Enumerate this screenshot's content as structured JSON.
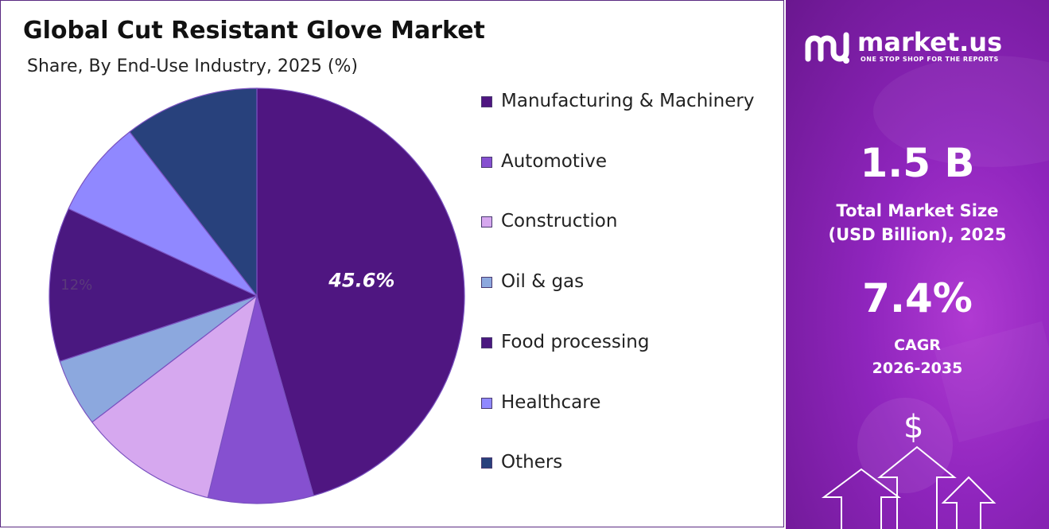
{
  "chart_data": {
    "type": "pie",
    "title": "Global Cut Resistant Glove Market",
    "subtitle": "Share, By End-Use Industry, 2025 (%)",
    "categories": [
      "Manufacturing & Machinery",
      "Automotive",
      "Construction",
      "Oil & gas",
      "Food processing",
      "Healthcare",
      "Others"
    ],
    "values": [
      45.6,
      8.2,
      10.8,
      5.3,
      12,
      7.6,
      10.5
    ],
    "data_labels": [
      "45.6%",
      "",
      "",
      "",
      "12%",
      "",
      ""
    ],
    "colors": [
      "#4f1681",
      "#8650d0",
      "#d6a8ef",
      "#8ca8de",
      "#4a1880",
      "#9088ff",
      "#28417c"
    ],
    "legend_position": "right"
  },
  "brand": {
    "name": "market.us",
    "tagline": "ONE STOP SHOP FOR THE REPORTS"
  },
  "stats": {
    "market_size_value": "1.5 B",
    "market_size_label_1": "Total Market Size",
    "market_size_label_2": "(USD Billion), 2025",
    "cagr_value": "7.4%",
    "cagr_label_1": "CAGR",
    "cagr_label_2": "2026-2035"
  },
  "icons": {
    "dollar_symbol": "$",
    "logo": "market-us-logo-icon",
    "arrows": "growth-arrows-icon"
  }
}
